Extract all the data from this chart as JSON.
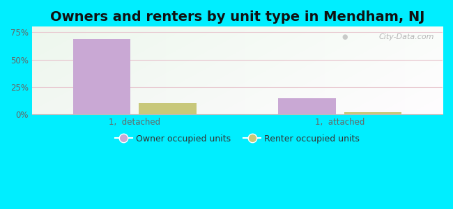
{
  "title": "Owners and renters by unit type in Mendham, NJ",
  "categories": [
    "1,  detached",
    "1,  attached"
  ],
  "owner_values": [
    69.0,
    15.0
  ],
  "renter_values": [
    10.0,
    2.0
  ],
  "owner_color": "#c9a8d4",
  "renter_color": "#c8c87a",
  "ylim": [
    0,
    80
  ],
  "yticks": [
    0,
    25,
    50,
    75
  ],
  "ytick_labels": [
    "0%",
    "25%",
    "50%",
    "75%"
  ],
  "title_fontsize": 14,
  "legend_labels": [
    "Owner occupied units",
    "Renter occupied units"
  ],
  "bar_width": 0.28,
  "watermark": "City-Data.com",
  "outer_bg": "#00eeff",
  "tick_color": "#666666",
  "grid_color": "#d8ecd0"
}
